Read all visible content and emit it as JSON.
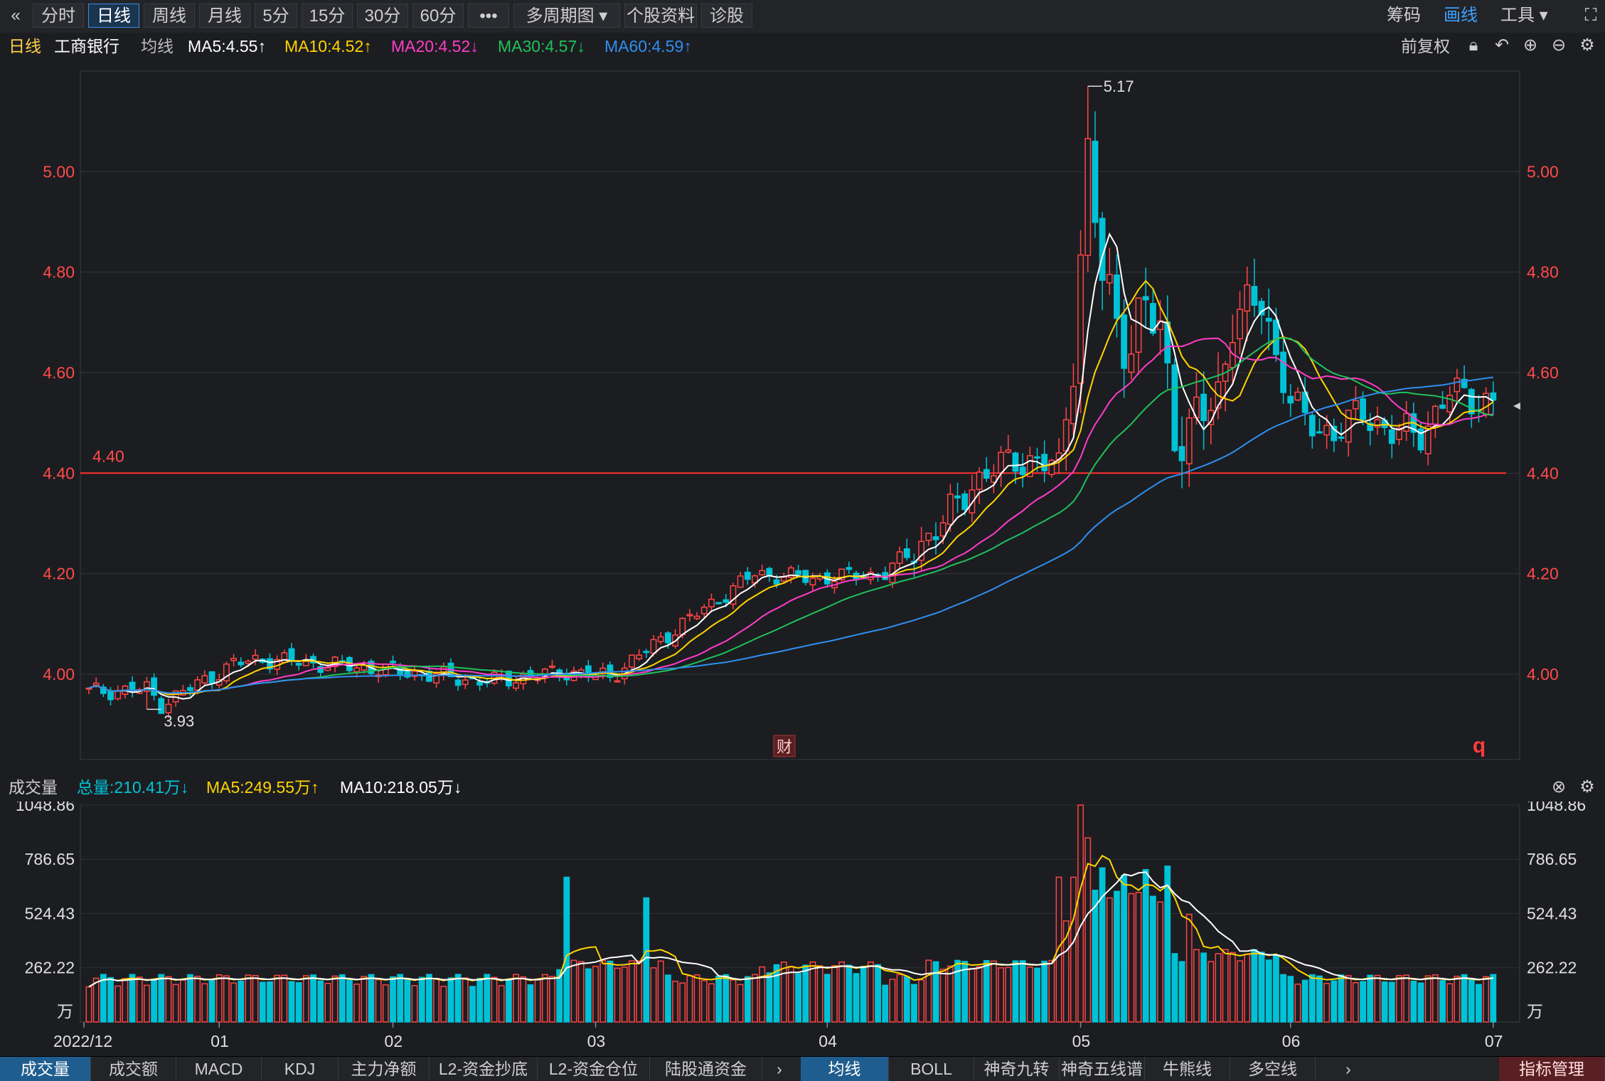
{
  "toolbar": {
    "back_icon": "double-chevron-left-icon",
    "buttons": [
      "分时",
      "日线",
      "周线",
      "月线",
      "5分",
      "15分",
      "30分",
      "60分",
      "•••",
      "多周期图 ▾",
      "个股资料",
      "诊股"
    ],
    "active": "日线",
    "right": {
      "chips": "筹码",
      "draw": "画线",
      "tools": "工具 ▾"
    }
  },
  "info": {
    "period": "日线",
    "stock": "工商银行",
    "ma_title": "均线",
    "ma5": "MA5:4.55↑",
    "ma10": "MA10:4.52↑",
    "ma20": "MA20:4.52↓",
    "ma30": "MA30:4.57↓",
    "ma60": "MA60:4.59↑",
    "adjust": "前复权"
  },
  "colors": {
    "up": "#ff4545",
    "down": "#00c2d6",
    "ma5": "#ffffff",
    "ma10": "#ffd400",
    "ma20": "#ff3dc8",
    "ma30": "#20c15a",
    "ma60": "#2f8ff0",
    "vol_ma5": "#ffd400",
    "vol_ma10": "#ffffff"
  },
  "volume_info": {
    "title": "成交量",
    "total": "总量:210.41万↓",
    "ma5": "MA5:249.55万↑",
    "ma10": "MA10:218.05万↓"
  },
  "bottom_tabs": [
    "成交量",
    "成交额",
    "MACD",
    "KDJ",
    "主力净额",
    "L2-资金抄底",
    "L2-资金仓位",
    "陆股通资金"
  ],
  "bottom_tabs_right": [
    "均线",
    "BOLL",
    "神奇九转",
    "神奇五线谱",
    "牛熊线",
    "多空线"
  ],
  "bottom_right_btn": "指标管理",
  "chart_data": [
    {
      "type": "candlestick",
      "title": "",
      "y_ticks": [
        "4.00",
        "4.20",
        "4.40",
        "4.60",
        "4.80",
        "5.00"
      ],
      "ylim": [
        3.83,
        5.2
      ],
      "hline": {
        "value": 4.4,
        "label": "4.40"
      },
      "max_label": "5.17",
      "min_label": "3.93",
      "markers": [
        "财",
        "q"
      ],
      "x_labels": [
        "2022/12",
        "01",
        "02",
        "03",
        "04",
        "05",
        "06",
        "07"
      ],
      "legend": [
        "MA5",
        "MA10",
        "MA20",
        "MA30",
        "MA60"
      ]
    },
    {
      "type": "bar",
      "title": "成交量",
      "y_ticks": [
        "1048.86",
        "786.65",
        "524.43",
        "262.22"
      ],
      "unit": "万",
      "ylim": [
        0,
        1048.86
      ],
      "lines": [
        "MA5",
        "MA10"
      ]
    }
  ]
}
